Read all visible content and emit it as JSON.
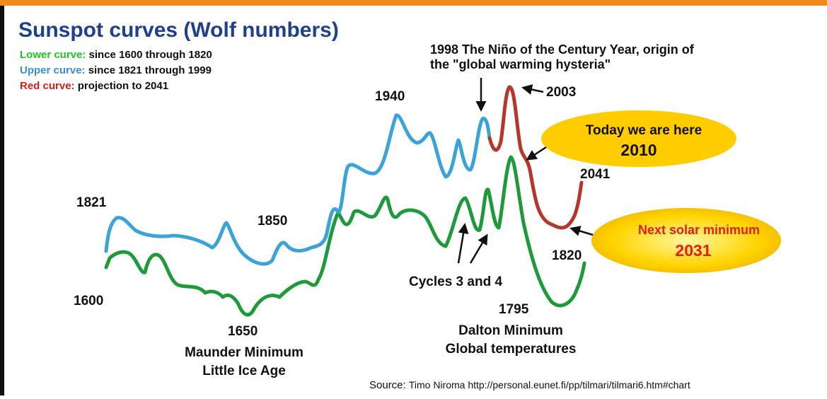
{
  "title": "Sunspot curves (Wolf numbers)",
  "legend": [
    {
      "key": "Lower curve:",
      "text": "since 1600 through 1820"
    },
    {
      "key": "Upper curve:",
      "text": "since 1821 through 1999"
    },
    {
      "key": "Red curve:",
      "text": "projection to 2041"
    }
  ],
  "labels": {
    "y1600": "1600",
    "y1821": "1821",
    "y1650": "1650",
    "y1850": "1850",
    "y1940": "1940",
    "y2003": "2003",
    "y2041": "2041",
    "y1820": "1820",
    "y1795": "1795",
    "nino": [
      "1998 The Niño of the Century Year, origin of",
      "the \"global warming hysteria\""
    ],
    "maunder": [
      "Maunder Minimum",
      "Little Ice Age"
    ],
    "dalton": [
      "Dalton Minimum",
      "Global temperatures"
    ],
    "cycles": "Cycles 3 and 4"
  },
  "callouts": {
    "today": [
      "Today we are here",
      "2010"
    ],
    "next": [
      "Next solar minimum",
      "2031"
    ]
  },
  "source": {
    "key": "Source:",
    "text": "Timo Niroma http://personal.eunet.fi/pp/tilmari/tilmari6.htm#chart"
  }
}
